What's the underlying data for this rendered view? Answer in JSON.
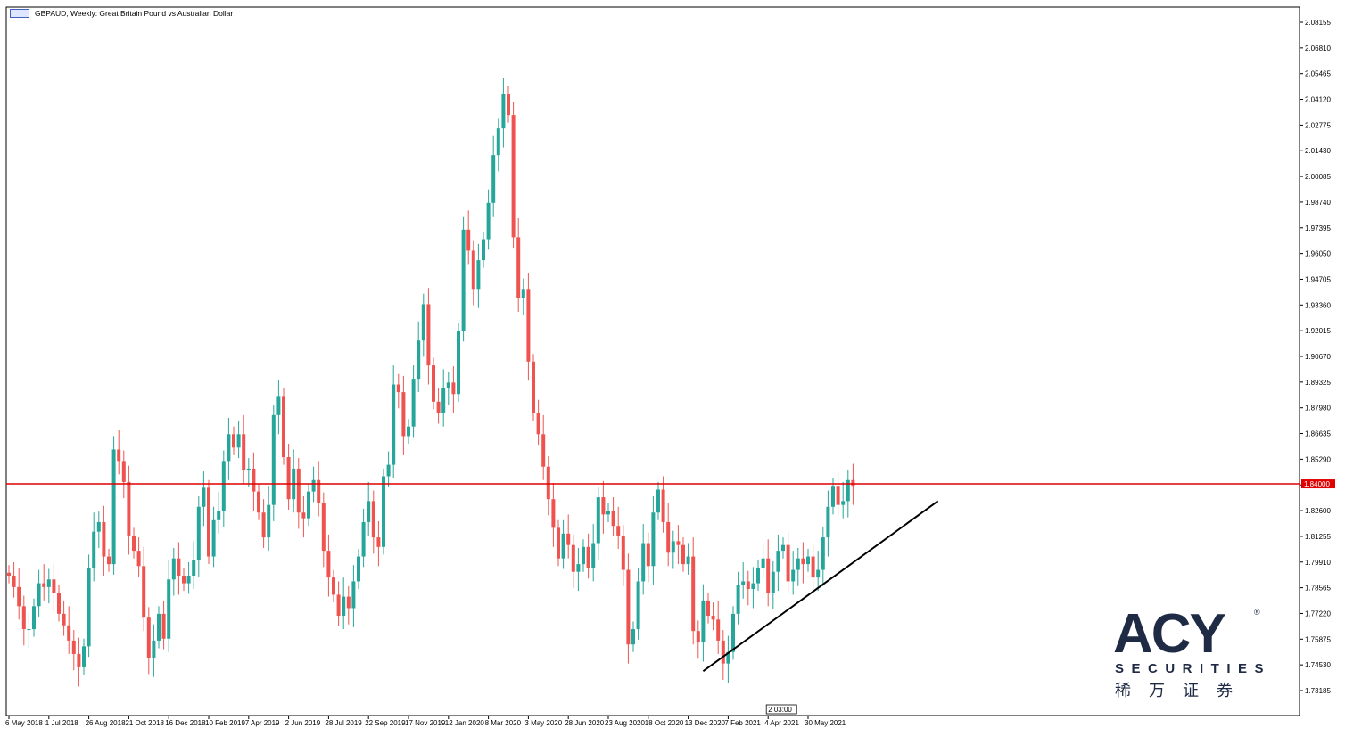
{
  "header": {
    "title": "GBPAUD, Weekly:  Great Britain Pound vs Australian Dollar"
  },
  "colors": {
    "bull": "#26a69a",
    "bear": "#ef5350",
    "level_line": "#e00000",
    "trendline": "#000000",
    "logo": "#1f2a44"
  },
  "chart_data": {
    "type": "candlestick",
    "instrument": "GBPAUD",
    "timeframe": "Weekly",
    "ylim": [
      1.725,
      2.085
    ],
    "y_ticks": [
      "2.08155",
      "2.06810",
      "2.05465",
      "2.04120",
      "2.02775",
      "2.01430",
      "2.00085",
      "1.98740",
      "1.97395",
      "1.96050",
      "1.94705",
      "1.93360",
      "1.92015",
      "1.90670",
      "1.89325",
      "1.87980",
      "1.86635",
      "1.85290",
      "1.83945",
      "1.82600",
      "1.81255",
      "1.79910",
      "1.78565",
      "1.77220",
      "1.75875",
      "1.74530",
      "1.73185"
    ],
    "x_ticks": [
      {
        "label": "6 May 2018",
        "index": 0
      },
      {
        "label": "1 Jul 2018",
        "index": 8
      },
      {
        "label": "26 Aug 2018",
        "index": 16
      },
      {
        "label": "21 Oct 2018",
        "index": 24
      },
      {
        "label": "16 Dec 2018",
        "index": 32
      },
      {
        "label": "10 Feb 2019",
        "index": 40
      },
      {
        "label": "7 Apr 2019",
        "index": 48
      },
      {
        "label": "2 Jun 2019",
        "index": 56
      },
      {
        "label": "28 Jul 2019",
        "index": 64
      },
      {
        "label": "22 Sep 2019",
        "index": 72
      },
      {
        "label": "17 Nov 2019",
        "index": 80
      },
      {
        "label": "12 Jan 2020",
        "index": 88
      },
      {
        "label": "8 Mar 2020",
        "index": 96
      },
      {
        "label": "3 May 2020",
        "index": 104
      },
      {
        "label": "28 Jun 2020",
        "index": 112
      },
      {
        "label": "23 Aug 2020",
        "index": 120
      },
      {
        "label": "18 Oct 2020",
        "index": 128
      },
      {
        "label": "13 Dec 2020",
        "index": 136
      },
      {
        "label": "7 Feb 2021",
        "index": 144
      },
      {
        "label": "4 Apr 2021",
        "index": 152
      },
      {
        "label": "30 May 2021",
        "index": 160
      }
    ],
    "level": {
      "value": 1.84,
      "label": "1.84000"
    },
    "trendline": [
      {
        "index": 139,
        "value": 1.742
      },
      {
        "index": 186,
        "value": 1.831
      }
    ],
    "time_marker": {
      "label": "2 03:00",
      "index": 152
    },
    "closes": [
      1.792,
      1.786,
      1.776,
      1.764,
      1.764,
      1.776,
      1.788,
      1.786,
      1.79,
      1.783,
      1.772,
      1.766,
      1.758,
      1.751,
      1.744,
      1.755,
      1.796,
      1.815,
      1.82,
      1.802,
      1.798,
      1.858,
      1.852,
      1.841,
      1.813,
      1.805,
      1.797,
      1.77,
      1.749,
      1.758,
      1.772,
      1.759,
      1.79,
      1.801,
      1.792,
      1.788,
      1.792,
      1.8,
      1.828,
      1.838,
      1.802,
      1.821,
      1.826,
      1.852,
      1.866,
      1.859,
      1.866,
      1.847,
      1.848,
      1.836,
      1.825,
      1.812,
      1.829,
      1.876,
      1.886,
      1.854,
      1.832,
      1.848,
      1.825,
      1.822,
      1.836,
      1.842,
      1.83,
      1.805,
      1.791,
      1.782,
      1.771,
      1.781,
      1.775,
      1.789,
      1.802,
      1.82,
      1.831,
      1.812,
      1.807,
      1.844,
      1.85,
      1.892,
      1.888,
      1.865,
      1.87,
      1.895,
      1.915,
      1.934,
      1.902,
      1.883,
      1.877,
      1.89,
      1.893,
      1.887,
      1.92,
      1.973,
      1.962,
      1.942,
      1.957,
      1.968,
      1.987,
      2.012,
      2.026,
      2.044,
      2.033,
      1.969,
      1.937,
      1.942,
      1.904,
      1.877,
      1.866,
      1.849,
      1.832,
      1.817,
      1.801,
      1.814,
      1.808,
      1.794,
      1.798,
      1.807,
      1.796,
      1.809,
      1.833,
      1.824,
      1.826,
      1.818,
      1.813,
      1.795,
      1.756,
      1.764,
      1.789,
      1.809,
      1.797,
      1.825,
      1.837,
      1.82,
      1.804,
      1.81,
      1.808,
      1.798,
      1.802,
      1.763,
      1.757,
      1.779,
      1.771,
      1.769,
      1.758,
      1.746,
      1.752,
      1.772,
      1.787,
      1.789,
      1.785,
      1.788,
      1.796,
      1.801,
      1.783,
      1.794,
      1.805,
      1.808,
      1.789,
      1.795,
      1.801,
      1.798,
      1.802,
      1.791,
      1.795,
      1.812,
      1.828,
      1.839,
      1.829,
      1.831,
      1.842,
      1.839
    ]
  },
  "logo": {
    "brand": "ACY",
    "registered": "®",
    "sub": "SECURITIES",
    "cn": "稀万证券"
  }
}
